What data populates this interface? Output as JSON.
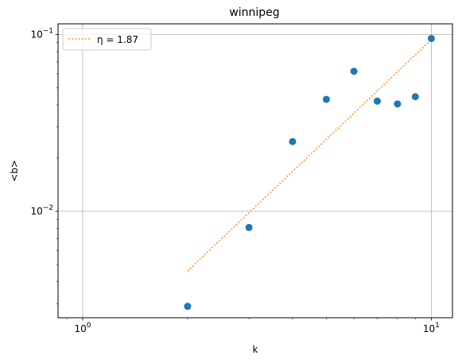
{
  "chart_data": {
    "type": "scatter",
    "title": "winnipeg",
    "xlabel": "k",
    "ylabel": "<b>",
    "xscale": "log",
    "yscale": "log",
    "xlim": [
      0.85,
      11.5
    ],
    "ylim": [
      0.0025,
      0.115
    ],
    "grid": true,
    "legend_position": "top-left",
    "x_ticks": [
      {
        "value": 1,
        "base": "10",
        "exp": "0"
      },
      {
        "value": 10,
        "base": "10",
        "exp": "1"
      }
    ],
    "y_ticks": [
      {
        "value": 0.01,
        "base": "10",
        "exp": "−2"
      },
      {
        "value": 0.1,
        "base": "10",
        "exp": "−1"
      }
    ],
    "series": [
      {
        "kind": "points",
        "color": "#1f77b4",
        "points": [
          {
            "x": 2,
            "y": 0.0029
          },
          {
            "x": 3,
            "y": 0.0081
          },
          {
            "x": 4,
            "y": 0.0248
          },
          {
            "x": 5,
            "y": 0.043
          },
          {
            "x": 6,
            "y": 0.062
          },
          {
            "x": 7,
            "y": 0.042
          },
          {
            "x": 8,
            "y": 0.0405
          },
          {
            "x": 9,
            "y": 0.0445
          },
          {
            "x": 10,
            "y": 0.095
          }
        ]
      },
      {
        "kind": "fit",
        "name": "η = 1.87",
        "color": "#ff7f0e",
        "style": "dotted",
        "eta": 1.87,
        "points": [
          {
            "x": 2,
            "y": 0.0046
          },
          {
            "x": 10,
            "y": 0.0935
          }
        ]
      }
    ]
  }
}
